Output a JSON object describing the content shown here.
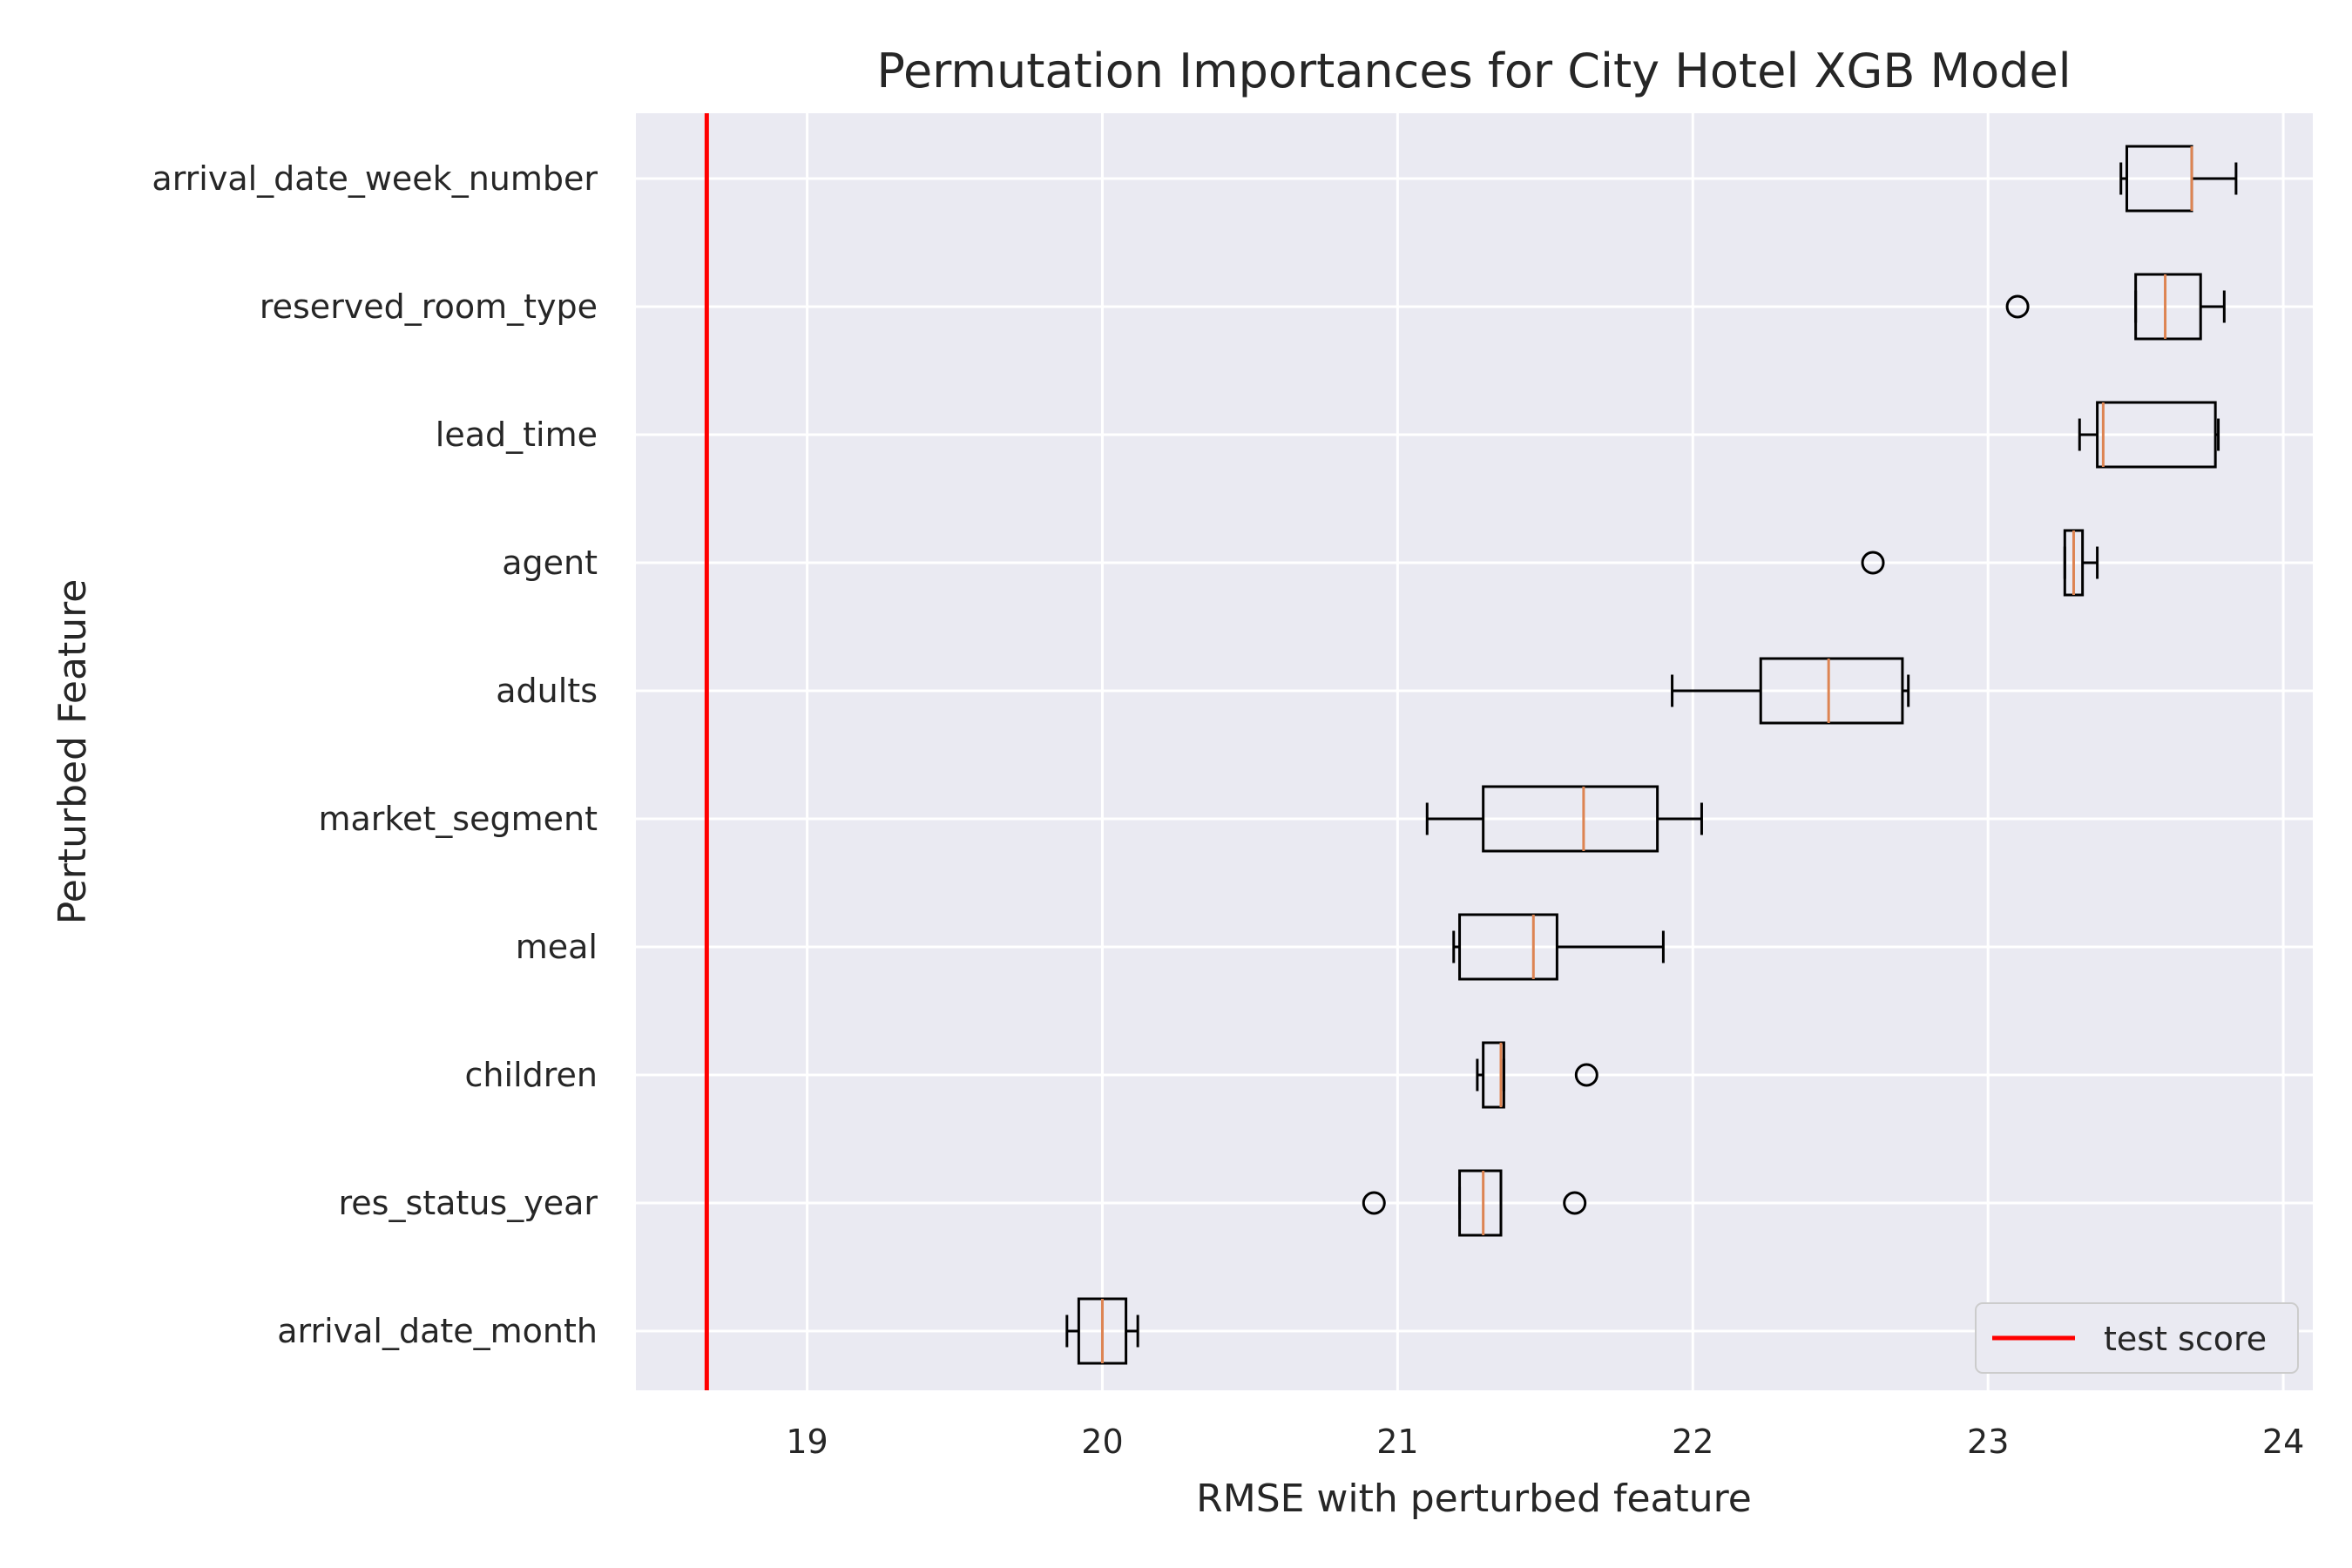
{
  "chart_data": {
    "type": "boxplot",
    "orientation": "horizontal",
    "title": "Permutation Importances for City Hotel XGB Model",
    "xlabel": "RMSE with perturbed feature",
    "ylabel": "Perturbed Feature",
    "xlim": [
      18.42,
      24.1
    ],
    "xticks": [
      19,
      20,
      21,
      22,
      23,
      24
    ],
    "grid": true,
    "reference_line": {
      "label": "test score",
      "value": 18.66,
      "color": "#ff0000"
    },
    "legend": {
      "placement": "lower-right",
      "entries": [
        "test score"
      ]
    },
    "colors": {
      "background": "#eaeaf2",
      "grid": "#ffffff",
      "box": "#000000",
      "median": "#dd8452"
    },
    "features": [
      {
        "name": "arrival_date_week_number",
        "whisker_low": 23.45,
        "q1": 23.47,
        "median": 23.69,
        "q3": 23.69,
        "whisker_high": 23.84,
        "outliers": []
      },
      {
        "name": "reserved_room_type",
        "whisker_low": 23.5,
        "q1": 23.5,
        "median": 23.6,
        "q3": 23.72,
        "whisker_high": 23.8,
        "outliers": [
          23.1
        ]
      },
      {
        "name": "lead_time",
        "whisker_low": 23.31,
        "q1": 23.37,
        "median": 23.39,
        "q3": 23.77,
        "whisker_high": 23.78,
        "outliers": []
      },
      {
        "name": "agent",
        "whisker_low": 23.26,
        "q1": 23.26,
        "median": 23.29,
        "q3": 23.32,
        "whisker_high": 23.37,
        "outliers": [
          22.61
        ]
      },
      {
        "name": "adults",
        "whisker_low": 21.93,
        "q1": 22.23,
        "median": 22.46,
        "q3": 22.71,
        "whisker_high": 22.73,
        "outliers": []
      },
      {
        "name": "market_segment",
        "whisker_low": 21.1,
        "q1": 21.29,
        "median": 21.63,
        "q3": 21.88,
        "whisker_high": 22.03,
        "outliers": []
      },
      {
        "name": "meal",
        "whisker_low": 21.19,
        "q1": 21.21,
        "median": 21.46,
        "q3": 21.54,
        "whisker_high": 21.9,
        "outliers": []
      },
      {
        "name": "children",
        "whisker_low": 21.27,
        "q1": 21.29,
        "median": 21.35,
        "q3": 21.36,
        "whisker_high": 21.36,
        "outliers": [
          21.64
        ]
      },
      {
        "name": "res_status_year",
        "whisker_low": 21.21,
        "q1": 21.21,
        "median": 21.29,
        "q3": 21.35,
        "whisker_high": 21.35,
        "outliers": [
          20.92,
          21.6
        ]
      },
      {
        "name": "arrival_date_month",
        "whisker_low": 19.88,
        "q1": 19.92,
        "median": 20.0,
        "q3": 20.08,
        "whisker_high": 20.12,
        "outliers": []
      }
    ]
  }
}
